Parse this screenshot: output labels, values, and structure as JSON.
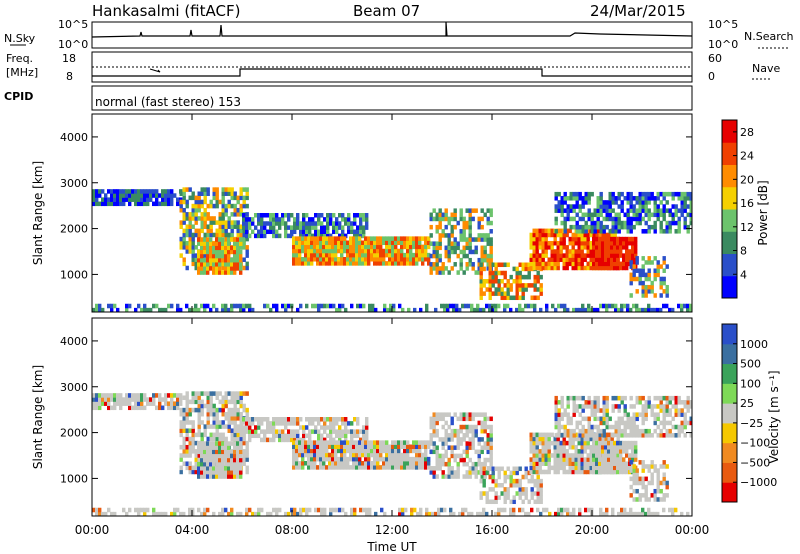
{
  "header": {
    "station": "Hankasalmi (fitACF)",
    "beam": "Beam 07",
    "date": "24/Mar/2015"
  },
  "status_panels": {
    "nsky_label": "N.Sky",
    "nsky_ticks": [
      "10^5",
      "10^0"
    ],
    "nsearch_label": "N.Search",
    "nsearch_ticks": [
      "10^5",
      "10^0"
    ],
    "freq_label_line1": "Freq.",
    "freq_label_line2": "[MHz]",
    "freq_ticks": [
      "18",
      "8"
    ],
    "nave_label": "Nave",
    "nave_ticks": [
      "60",
      "0"
    ],
    "cpid_label": "CPID",
    "cpid_text": "normal (fast stereo) 153"
  },
  "colors": {
    "power_scale": [
      "#0000ff",
      "#2a4fc9",
      "#3a8a60",
      "#6cc36c",
      "#f5d000",
      "#ff8c00",
      "#f04000",
      "#e60000"
    ],
    "velocity_scale": [
      "#2a4fc9",
      "#3a6fa0",
      "#3aa35a",
      "#7ed957",
      "#c8c8c4",
      "#f5c800",
      "#f08a20",
      "#e85a10",
      "#e60000"
    ]
  },
  "chart_data": [
    {
      "type": "heatmap",
      "title": "Power",
      "xlabel": "",
      "ylabel": "Slant Range [km]",
      "xlim": [
        0,
        24
      ],
      "ylim": [
        180,
        4500
      ],
      "x_ticks": [
        "00:00",
        "04:00",
        "08:00",
        "12:00",
        "16:00",
        "20:00",
        "00:00"
      ],
      "y_ticks": [
        "1000",
        "2000",
        "3000",
        "4000"
      ],
      "colorbar": {
        "label": "Power [dB]",
        "ticks": [
          "4",
          "8",
          "12",
          "16",
          "20",
          "24",
          "28"
        ],
        "range": [
          0,
          30
        ]
      }
    },
    {
      "type": "heatmap",
      "title": "Velocity",
      "xlabel": "Time UT",
      "ylabel": "Slant Range [km]",
      "xlim": [
        0,
        24
      ],
      "ylim": [
        180,
        4500
      ],
      "x_ticks": [
        "00:00",
        "04:00",
        "08:00",
        "12:00",
        "16:00",
        "20:00",
        "00:00"
      ],
      "y_ticks": [
        "1000",
        "2000",
        "3000",
        "4000"
      ],
      "colorbar": {
        "label": "Velocity [m s⁻¹]",
        "ticks": [
          "1000",
          "500",
          "100",
          "25",
          "−25",
          "−100",
          "−500",
          "−1000"
        ]
      }
    }
  ]
}
